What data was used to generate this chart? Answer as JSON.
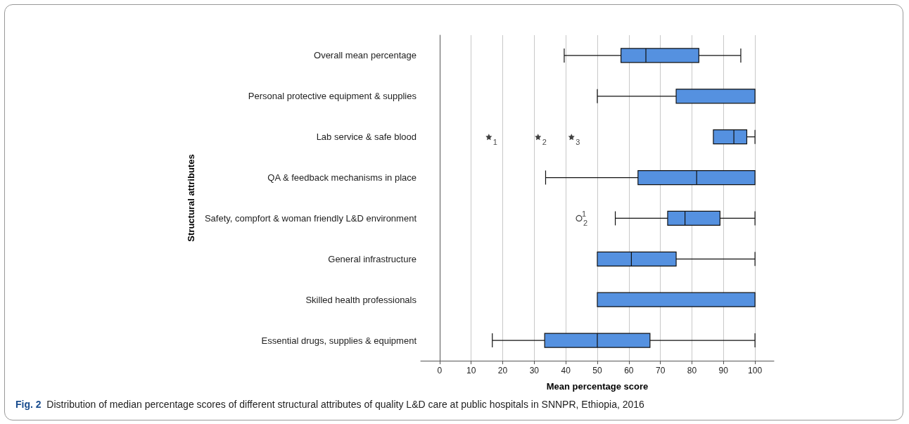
{
  "chart_data": {
    "type": "box",
    "orientation": "horizontal",
    "categories": [
      "Overall mean percentage",
      "Personal protective equipment & supplies",
      "Lab service & safe blood",
      "QA & feedback mechanisms in place",
      "Safety, compfort & woman friendly L&D environment",
      "General infrastructure",
      "Skilled health professionals",
      "Essential drugs, supplies & equipment"
    ],
    "boxes": [
      {
        "low": 39.5,
        "q1": 57.5,
        "median": 65.4,
        "q3": 82.2,
        "high": 95.5
      },
      {
        "low": 50,
        "q1": 75,
        "median": 100,
        "q3": 100,
        "high": 100
      },
      {
        "low": 86.8,
        "q1": 86.8,
        "median": 93.3,
        "q3": 97.4,
        "high": 100,
        "outliers": [
          15.6,
          31.2,
          41.8
        ]
      },
      {
        "low": 33.6,
        "q1": 62.9,
        "median": 81.5,
        "q3": 100,
        "high": 100
      },
      {
        "low": 55.7,
        "q1": 72.3,
        "median": 77.8,
        "q3": 88.9,
        "high": 100,
        "outliers": [
          44.2
        ]
      },
      {
        "low": 50,
        "q1": 50,
        "median": 60.8,
        "q3": 75,
        "high": 100
      },
      {
        "low": 50,
        "q1": 50,
        "median": 50,
        "q3": 100,
        "high": 100
      },
      {
        "low": 16.7,
        "q1": 33.3,
        "median": 50,
        "q3": 66.7,
        "high": 100
      }
    ],
    "color": "#5591e0",
    "xlabel": "Mean percentage score",
    "ylabel": "Structural attributes",
    "xlim": [
      -6,
      106
    ],
    "xticks": [
      0,
      10,
      20,
      30,
      40,
      50,
      60,
      70,
      80,
      90,
      100
    ],
    "grid": "x",
    "annotations": [
      "1",
      "2",
      "3",
      "1",
      "2",
      "Fig. 2 Distribution of median percentage scores of different structural attributes of quality L&D care at public hospitals in SNNPR, Ethiopia, 2016"
    ]
  }
}
